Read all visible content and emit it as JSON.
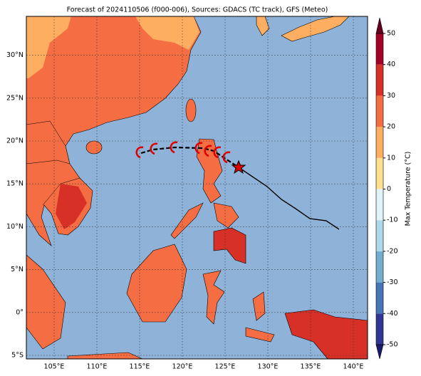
{
  "title": "Forecast of 2024110506 (f000-006), Sources: GDACS (TC track), GFS (Meteo)",
  "axes": {
    "x_labels": [
      "105°E",
      "110°E",
      "115°E",
      "120°E",
      "125°E",
      "130°E",
      "135°E",
      "140°E"
    ],
    "y_labels": [
      "5°S",
      "0°",
      "5°N",
      "10°N",
      "15°N",
      "20°N",
      "25°N",
      "30°N"
    ]
  },
  "colorbar": {
    "label": "Max Temperature (°C)",
    "ticks": [
      -50,
      -40,
      -30,
      -20,
      -10,
      0,
      10,
      20,
      30,
      40,
      50
    ],
    "colors": [
      "#313695",
      "#4575b4",
      "#74add1",
      "#abd9e9",
      "#e0f3f8",
      "#fee090",
      "#fdae61",
      "#f46d43",
      "#d73027",
      "#a50026"
    ]
  }
}
